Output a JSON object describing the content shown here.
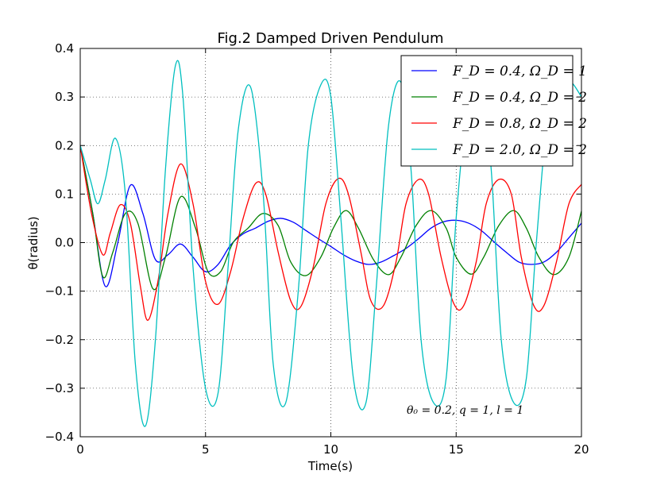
{
  "chart_data": {
    "type": "line",
    "title": "Fig.2 Damped Driven Pendulum",
    "xlabel": "Time(s)",
    "ylabel": "θ(radius)",
    "xlim": [
      0,
      20
    ],
    "ylim": [
      -0.4,
      0.4
    ],
    "xticks": [
      0,
      5,
      10,
      15,
      20
    ],
    "xtick_labels": [
      "0",
      "5",
      "10",
      "15",
      "20"
    ],
    "yticks": [
      -0.4,
      -0.3,
      -0.2,
      -0.1,
      0.0,
      0.1,
      0.2,
      0.3,
      0.4
    ],
    "ytick_labels": [
      "−0.4",
      "−0.3",
      "−0.2",
      "−0.1",
      "0.0",
      "0.1",
      "0.2",
      "0.3",
      "0.4"
    ],
    "grid": true,
    "legend_position": "top-right",
    "annotation": "θ₀ = 0.2, q = 1, l = 1",
    "series": [
      {
        "name": "F_D = 0.4, Ω_D = 1",
        "color": "#0000ff",
        "x": [
          0,
          0.5,
          1.0,
          1.5,
          2.0,
          2.5,
          3.0,
          3.5,
          4.0,
          4.5,
          5.0,
          5.5,
          6.0,
          6.5,
          7.0,
          7.5,
          8.0,
          8.5,
          9.0,
          9.5,
          10.0,
          10.5,
          11.0,
          11.5,
          12.0,
          12.5,
          13.0,
          13.5,
          14.0,
          14.5,
          15.0,
          15.5,
          16.0,
          16.5,
          17.0,
          17.5,
          18.0,
          18.5,
          19.0,
          19.5,
          20.0
        ],
        "y": [
          0.2,
          0.06,
          -0.09,
          -0.0,
          0.118,
          0.06,
          -0.035,
          -0.025,
          -0.003,
          -0.03,
          -0.06,
          -0.045,
          -0.005,
          0.018,
          0.03,
          0.044,
          0.05,
          0.042,
          0.025,
          0.008,
          -0.008,
          -0.025,
          -0.038,
          -0.045,
          -0.04,
          -0.027,
          -0.012,
          0.008,
          0.03,
          0.043,
          0.046,
          0.04,
          0.025,
          0.002,
          -0.02,
          -0.04,
          -0.045,
          -0.04,
          -0.02,
          0.01,
          0.04
        ]
      },
      {
        "name": "F_D = 0.4, Ω_D = 2",
        "color": "#008000",
        "x": [
          0,
          0.5,
          0.9,
          1.3,
          1.8,
          2.3,
          2.9,
          3.4,
          4.0,
          4.6,
          5.1,
          5.6,
          6.1,
          6.7,
          7.3,
          7.9,
          8.4,
          9.0,
          9.6,
          10.1,
          10.6,
          11.1,
          11.7,
          12.3,
          12.8,
          13.4,
          14.0,
          14.6,
          15.0,
          15.6,
          16.1,
          16.7,
          17.3,
          17.8,
          18.3,
          18.9,
          19.5,
          20.0
        ],
        "y": [
          0.2,
          0.06,
          -0.07,
          -0.02,
          0.06,
          0.04,
          -0.095,
          -0.03,
          0.094,
          0.03,
          -0.06,
          -0.06,
          0.0,
          0.03,
          0.06,
          0.035,
          -0.04,
          -0.068,
          -0.03,
          0.03,
          0.066,
          0.03,
          -0.035,
          -0.066,
          -0.03,
          0.035,
          0.066,
          0.03,
          -0.03,
          -0.065,
          -0.03,
          0.035,
          0.066,
          0.03,
          -0.03,
          -0.066,
          -0.03,
          0.065
        ]
      },
      {
        "name": "F_D = 0.8, Ω_D = 2",
        "color": "#ff0000",
        "x": [
          0,
          0.45,
          0.9,
          1.2,
          1.6,
          2.0,
          2.4,
          2.7,
          3.1,
          3.5,
          4.0,
          4.5,
          5.0,
          5.5,
          6.0,
          6.5,
          7.0,
          7.4,
          7.9,
          8.4,
          8.8,
          9.3,
          9.8,
          10.3,
          10.7,
          11.2,
          11.6,
          12.1,
          12.6,
          13.0,
          13.5,
          13.9,
          14.4,
          14.9,
          15.3,
          15.8,
          16.2,
          16.7,
          17.2,
          17.6,
          18.1,
          18.5,
          19.0,
          19.5,
          20.0
        ],
        "y": [
          0.2,
          0.06,
          -0.025,
          0.02,
          0.078,
          0.04,
          -0.09,
          -0.16,
          -0.08,
          0.06,
          0.162,
          0.08,
          -0.08,
          -0.127,
          -0.06,
          0.05,
          0.122,
          0.1,
          -0.02,
          -0.12,
          -0.132,
          -0.05,
          0.08,
          0.132,
          0.1,
          -0.02,
          -0.12,
          -0.13,
          -0.04,
          0.08,
          0.13,
          0.1,
          -0.03,
          -0.125,
          -0.13,
          -0.04,
          0.08,
          0.13,
          0.1,
          -0.03,
          -0.13,
          -0.13,
          -0.04,
          0.08,
          0.12
        ]
      },
      {
        "name": "F_D = 2.0, Ω_D = 2",
        "color": "#00bfbf",
        "x": [
          0,
          0.4,
          0.7,
          1.0,
          1.4,
          1.8,
          2.2,
          2.6,
          3.0,
          3.4,
          3.8,
          4.1,
          4.5,
          5.0,
          5.5,
          5.9,
          6.3,
          6.8,
          7.3,
          7.7,
          8.2,
          8.7,
          9.1,
          9.6,
          10.0,
          10.4,
          10.9,
          11.4,
          11.8,
          12.3,
          12.8,
          13.2,
          13.6,
          14.1,
          14.6,
          15.0,
          15.5,
          16.0,
          16.4,
          16.8,
          17.3,
          17.8,
          18.2,
          18.7,
          19.2,
          19.6,
          20.0
        ],
        "y": [
          0.2,
          0.13,
          0.08,
          0.13,
          0.215,
          0.1,
          -0.25,
          -0.378,
          -0.2,
          0.15,
          0.365,
          0.3,
          -0.05,
          -0.3,
          -0.31,
          -0.05,
          0.23,
          0.32,
          0.1,
          -0.25,
          -0.33,
          -0.1,
          0.2,
          0.325,
          0.3,
          0.05,
          -0.28,
          -0.33,
          -0.1,
          0.24,
          0.33,
          0.15,
          -0.2,
          -0.33,
          -0.28,
          0.05,
          0.3,
          0.33,
          0.15,
          -0.2,
          -0.33,
          -0.28,
          0.0,
          0.28,
          0.33,
          0.33,
          0.3
        ]
      }
    ]
  }
}
